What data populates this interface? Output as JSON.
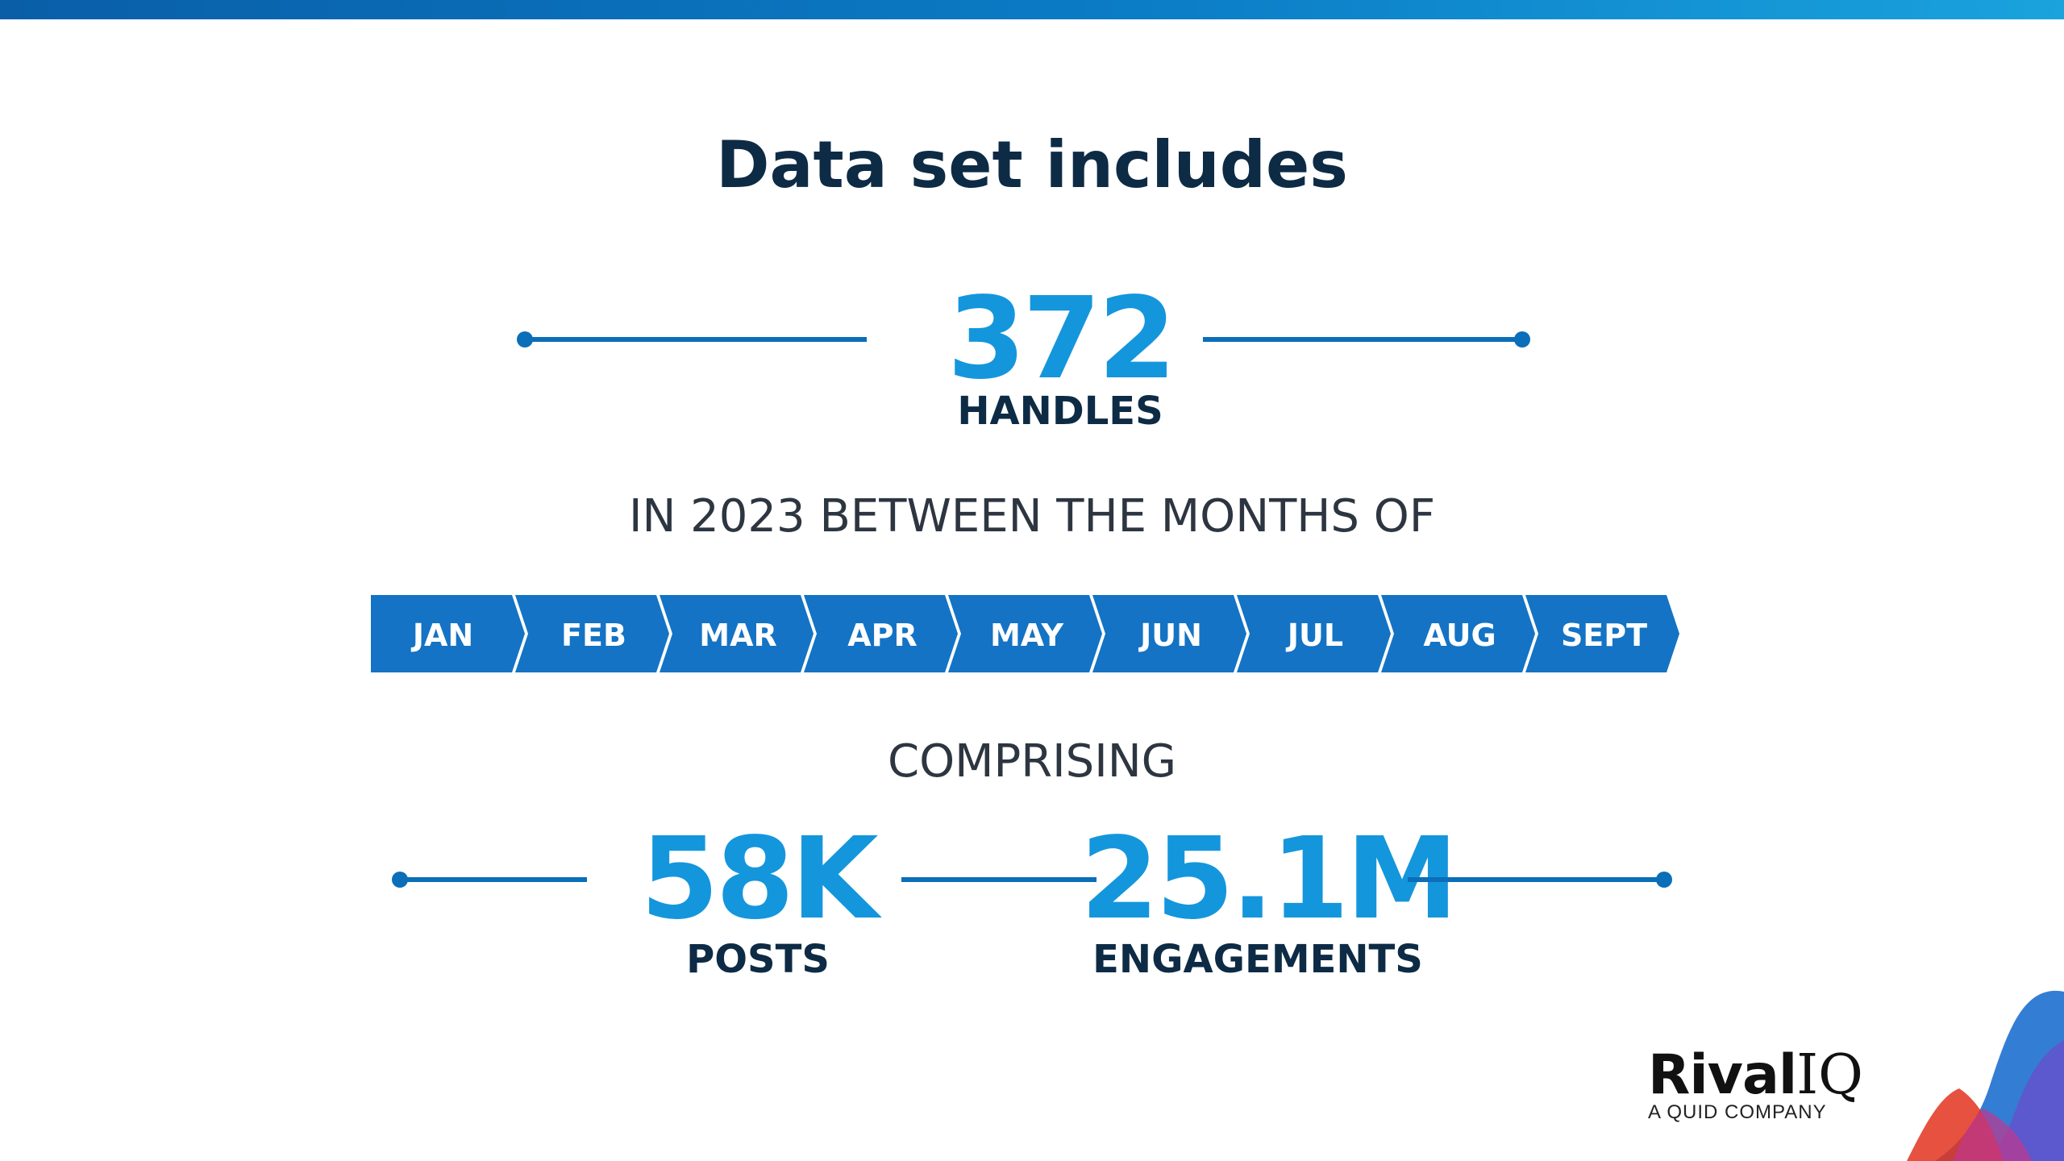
{
  "title": "Data set includes",
  "handles": {
    "value": "372",
    "label": "HANDLES"
  },
  "period_text": "IN 2023 BETWEEN THE MONTHS OF",
  "months": [
    "JAN",
    "FEB",
    "MAR",
    "APR",
    "MAY",
    "JUN",
    "JUL",
    "AUG",
    "SEPT"
  ],
  "comprising_text": "COMPRISING",
  "posts": {
    "value": "58K",
    "label": "POSTS"
  },
  "engagements": {
    "value": "25.1M",
    "label": "ENGAGEMENTS"
  },
  "logo": {
    "name_bold": "Rival",
    "name_light": "IQ",
    "tagline": "A QUID COMPANY"
  },
  "colors": {
    "accent_blue": "#1496dc",
    "month_bar": "#1473c4",
    "dark_navy": "#0d2b45",
    "line": "#0b6eb8"
  }
}
